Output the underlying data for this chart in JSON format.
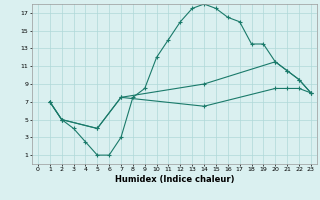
{
  "title": "",
  "xlabel": "Humidex (Indice chaleur)",
  "bg_color": "#daf0f0",
  "grid_color": "#b0d8d8",
  "line_color": "#1a7a6a",
  "xlim": [
    -0.5,
    23.5
  ],
  "ylim": [
    0,
    18
  ],
  "xticks": [
    0,
    1,
    2,
    3,
    4,
    5,
    6,
    7,
    8,
    9,
    10,
    11,
    12,
    13,
    14,
    15,
    16,
    17,
    18,
    19,
    20,
    21,
    22,
    23
  ],
  "yticks": [
    1,
    3,
    5,
    7,
    9,
    11,
    13,
    15,
    17
  ],
  "line1_x": [
    1,
    2,
    3,
    4,
    5,
    6,
    7,
    8,
    9,
    10,
    11,
    12,
    13,
    14,
    15,
    16,
    17,
    18,
    19,
    20,
    21,
    22,
    23
  ],
  "line1_y": [
    7,
    5,
    4,
    2.5,
    1,
    1,
    3,
    7.5,
    8.5,
    12,
    14,
    16,
    17.5,
    18,
    17.5,
    16.5,
    16,
    13.5,
    13.5,
    11.5,
    10.5,
    9.5,
    8
  ],
  "line2_x": [
    1,
    2,
    5,
    7,
    14,
    20,
    21,
    22,
    23
  ],
  "line2_y": [
    7,
    5,
    4,
    7.5,
    9,
    11.5,
    10.5,
    9.5,
    8
  ],
  "line3_x": [
    1,
    2,
    5,
    7,
    14,
    20,
    21,
    22,
    23
  ],
  "line3_y": [
    7,
    5,
    4,
    7.5,
    6.5,
    8.5,
    8.5,
    8.5,
    8
  ]
}
